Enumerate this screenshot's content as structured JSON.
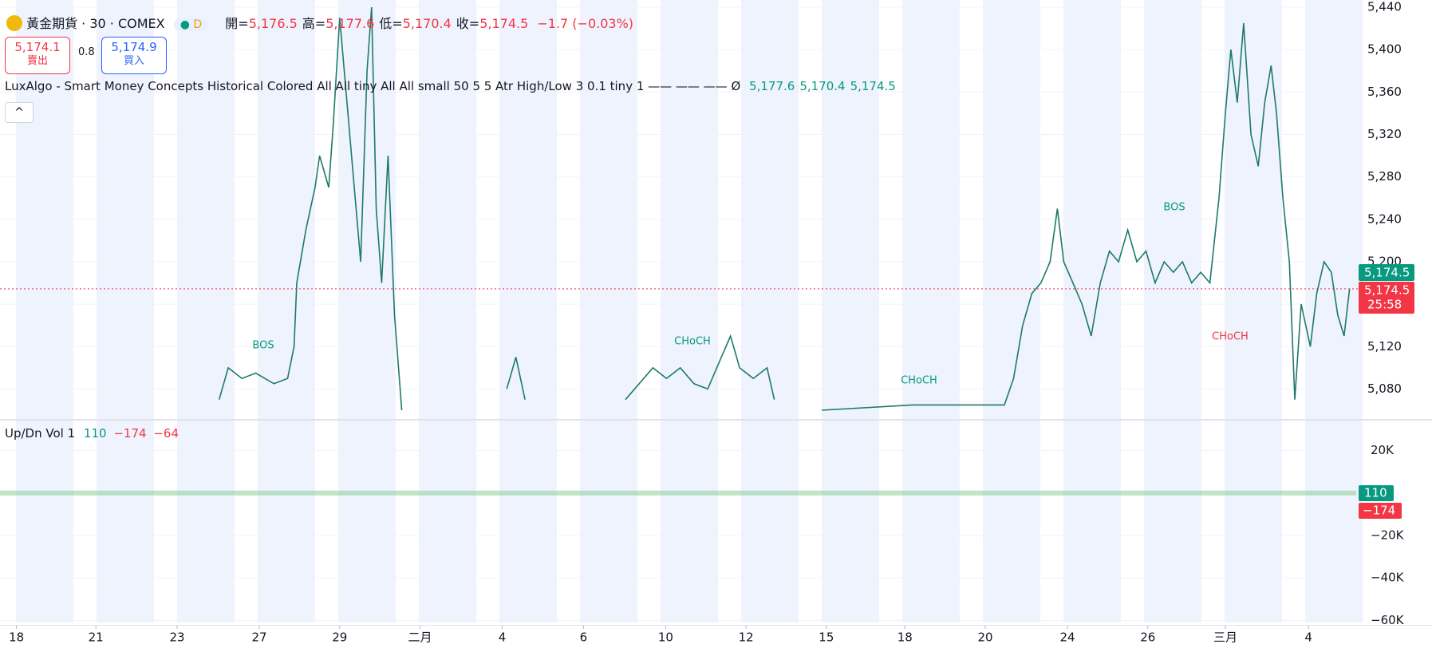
{
  "header": {
    "symbol": "黃金期貨 · 30 · COMEX",
    "badge": "D",
    "ohlc": [
      {
        "label": "開=",
        "value": "5,176.5"
      },
      {
        "label": "高=",
        "value": "5,177.6"
      },
      {
        "label": "低=",
        "value": "5,170.4"
      },
      {
        "label": "收=",
        "value": "5,174.5"
      }
    ],
    "change": "−1.7 (−0.03%)",
    "sell_price": "5,174.1",
    "sell_label": "賣出",
    "spread": "0.8",
    "buy_price": "5,174.9",
    "buy_label": "買入",
    "indicator": "LuxAlgo - Smart Money Concepts Historical Colored All All tiny All All small 50 5 5 Atr High/Low 3 0.1 tiny 1 —— —— ——  Ø",
    "indicator_values": [
      "5,177.6",
      "5,170.4",
      "5,174.5"
    ],
    "volume_title": "Up/Dn Vol 1",
    "volume_values": [
      "110",
      "−174",
      "−64"
    ]
  },
  "price_tags": {
    "last": "5,174.5",
    "close": "5,174.5",
    "countdown": "25:58"
  },
  "volume_tags": [
    "110",
    "−174"
  ],
  "annotations": [
    "BOS",
    "CHoCH",
    "CHoCH",
    "BOS",
    "CHoCH"
  ],
  "chart_data": {
    "type": "line",
    "series": [
      {
        "name": "黃金期貨",
        "color": "#1f7a68",
        "x": [
          240,
          250,
          265,
          280,
          300,
          315,
          322,
          325,
          335,
          345,
          350,
          360,
          365,
          372,
          395,
          402,
          407,
          412,
          418,
          425,
          432,
          440,
          null,
          555,
          565,
          575,
          null,
          685,
          700,
          715,
          730,
          745,
          760,
          775,
          790,
          800,
          810,
          825,
          840,
          848,
          null,
          900,
          1000,
          1100,
          1110,
          1120,
          1130,
          1140,
          1150,
          1158,
          1165,
          1175,
          1185,
          1195,
          1205,
          1215,
          1225,
          1235,
          1245,
          1255,
          1265,
          1275,
          1285,
          1295,
          1305,
          1315,
          1325,
          1335,
          1342,
          1348,
          1355,
          1362,
          1370,
          1378,
          1385,
          1392,
          1398,
          1405,
          1412,
          1418,
          1425,
          1435,
          1442,
          1450,
          1458,
          1465,
          1472,
          1478
        ],
        "values": [
          5070,
          5100,
          5090,
          5095,
          5085,
          5090,
          5120,
          5180,
          5230,
          5270,
          5300,
          5270,
          5330,
          5430,
          5200,
          5380,
          5440,
          5250,
          5180,
          5300,
          5150,
          5060,
          null,
          5080,
          5110,
          5070,
          null,
          5070,
          5085,
          5100,
          5090,
          5100,
          5085,
          5080,
          5110,
          5130,
          5100,
          5090,
          5100,
          5070,
          null,
          5060,
          5065,
          5065,
          5090,
          5140,
          5170,
          5180,
          5200,
          5250,
          5200,
          5180,
          5160,
          5130,
          5180,
          5210,
          5200,
          5230,
          5200,
          5210,
          5180,
          5200,
          5190,
          5200,
          5180,
          5190,
          5180,
          5260,
          5340,
          5400,
          5350,
          5425,
          5320,
          5290,
          5350,
          5385,
          5340,
          5260,
          5200,
          5070,
          5160,
          5120,
          5170,
          5200,
          5190,
          5150,
          5130,
          5174.5
        ]
      }
    ],
    "last_price": 5174.5,
    "xlim": [
      0,
      1487
    ],
    "xticks": [
      {
        "value": 18,
        "label": "18"
      },
      {
        "value": 105,
        "label": "21"
      },
      {
        "value": 194,
        "label": "23"
      },
      {
        "value": 284,
        "label": "27"
      },
      {
        "value": 372,
        "label": "29"
      },
      {
        "value": 460,
        "label": "二月"
      },
      {
        "value": 550,
        "label": "4"
      },
      {
        "value": 639,
        "label": "6"
      },
      {
        "value": 729,
        "label": "10"
      },
      {
        "value": 817,
        "label": "12"
      },
      {
        "value": 905,
        "label": "15"
      },
      {
        "value": 991,
        "label": "18"
      },
      {
        "value": 1079,
        "label": "20"
      },
      {
        "value": 1169,
        "label": "24"
      },
      {
        "value": 1257,
        "label": "26"
      },
      {
        "value": 1342,
        "label": "三月"
      },
      {
        "value": 1433,
        "label": "4"
      }
    ],
    "ylim": [
      5054,
      5443
    ],
    "yticks": [
      {
        "value": 5080,
        "label": "5,080"
      },
      {
        "value": 5120,
        "label": "5,120"
      },
      {
        "value": 5160,
        "label": "5,160"
      },
      {
        "value": 5200,
        "label": "5,200"
      },
      {
        "value": 5240,
        "label": "5,240"
      },
      {
        "value": 5280,
        "label": "5,280"
      },
      {
        "value": 5320,
        "label": "5,320"
      },
      {
        "value": 5360,
        "label": "5,360"
      },
      {
        "value": 5400,
        "label": "5,400"
      },
      {
        "value": 5440,
        "label": "5,440"
      }
    ],
    "y2lim": [
      -61000,
      33000
    ],
    "y2ticks": [
      {
        "value": 20000,
        "label": "20K"
      },
      {
        "value": -20000,
        "label": "−20K"
      },
      {
        "value": -40000,
        "label": "−40K"
      },
      {
        "value": -60000,
        "label": "−60K"
      }
    ]
  }
}
